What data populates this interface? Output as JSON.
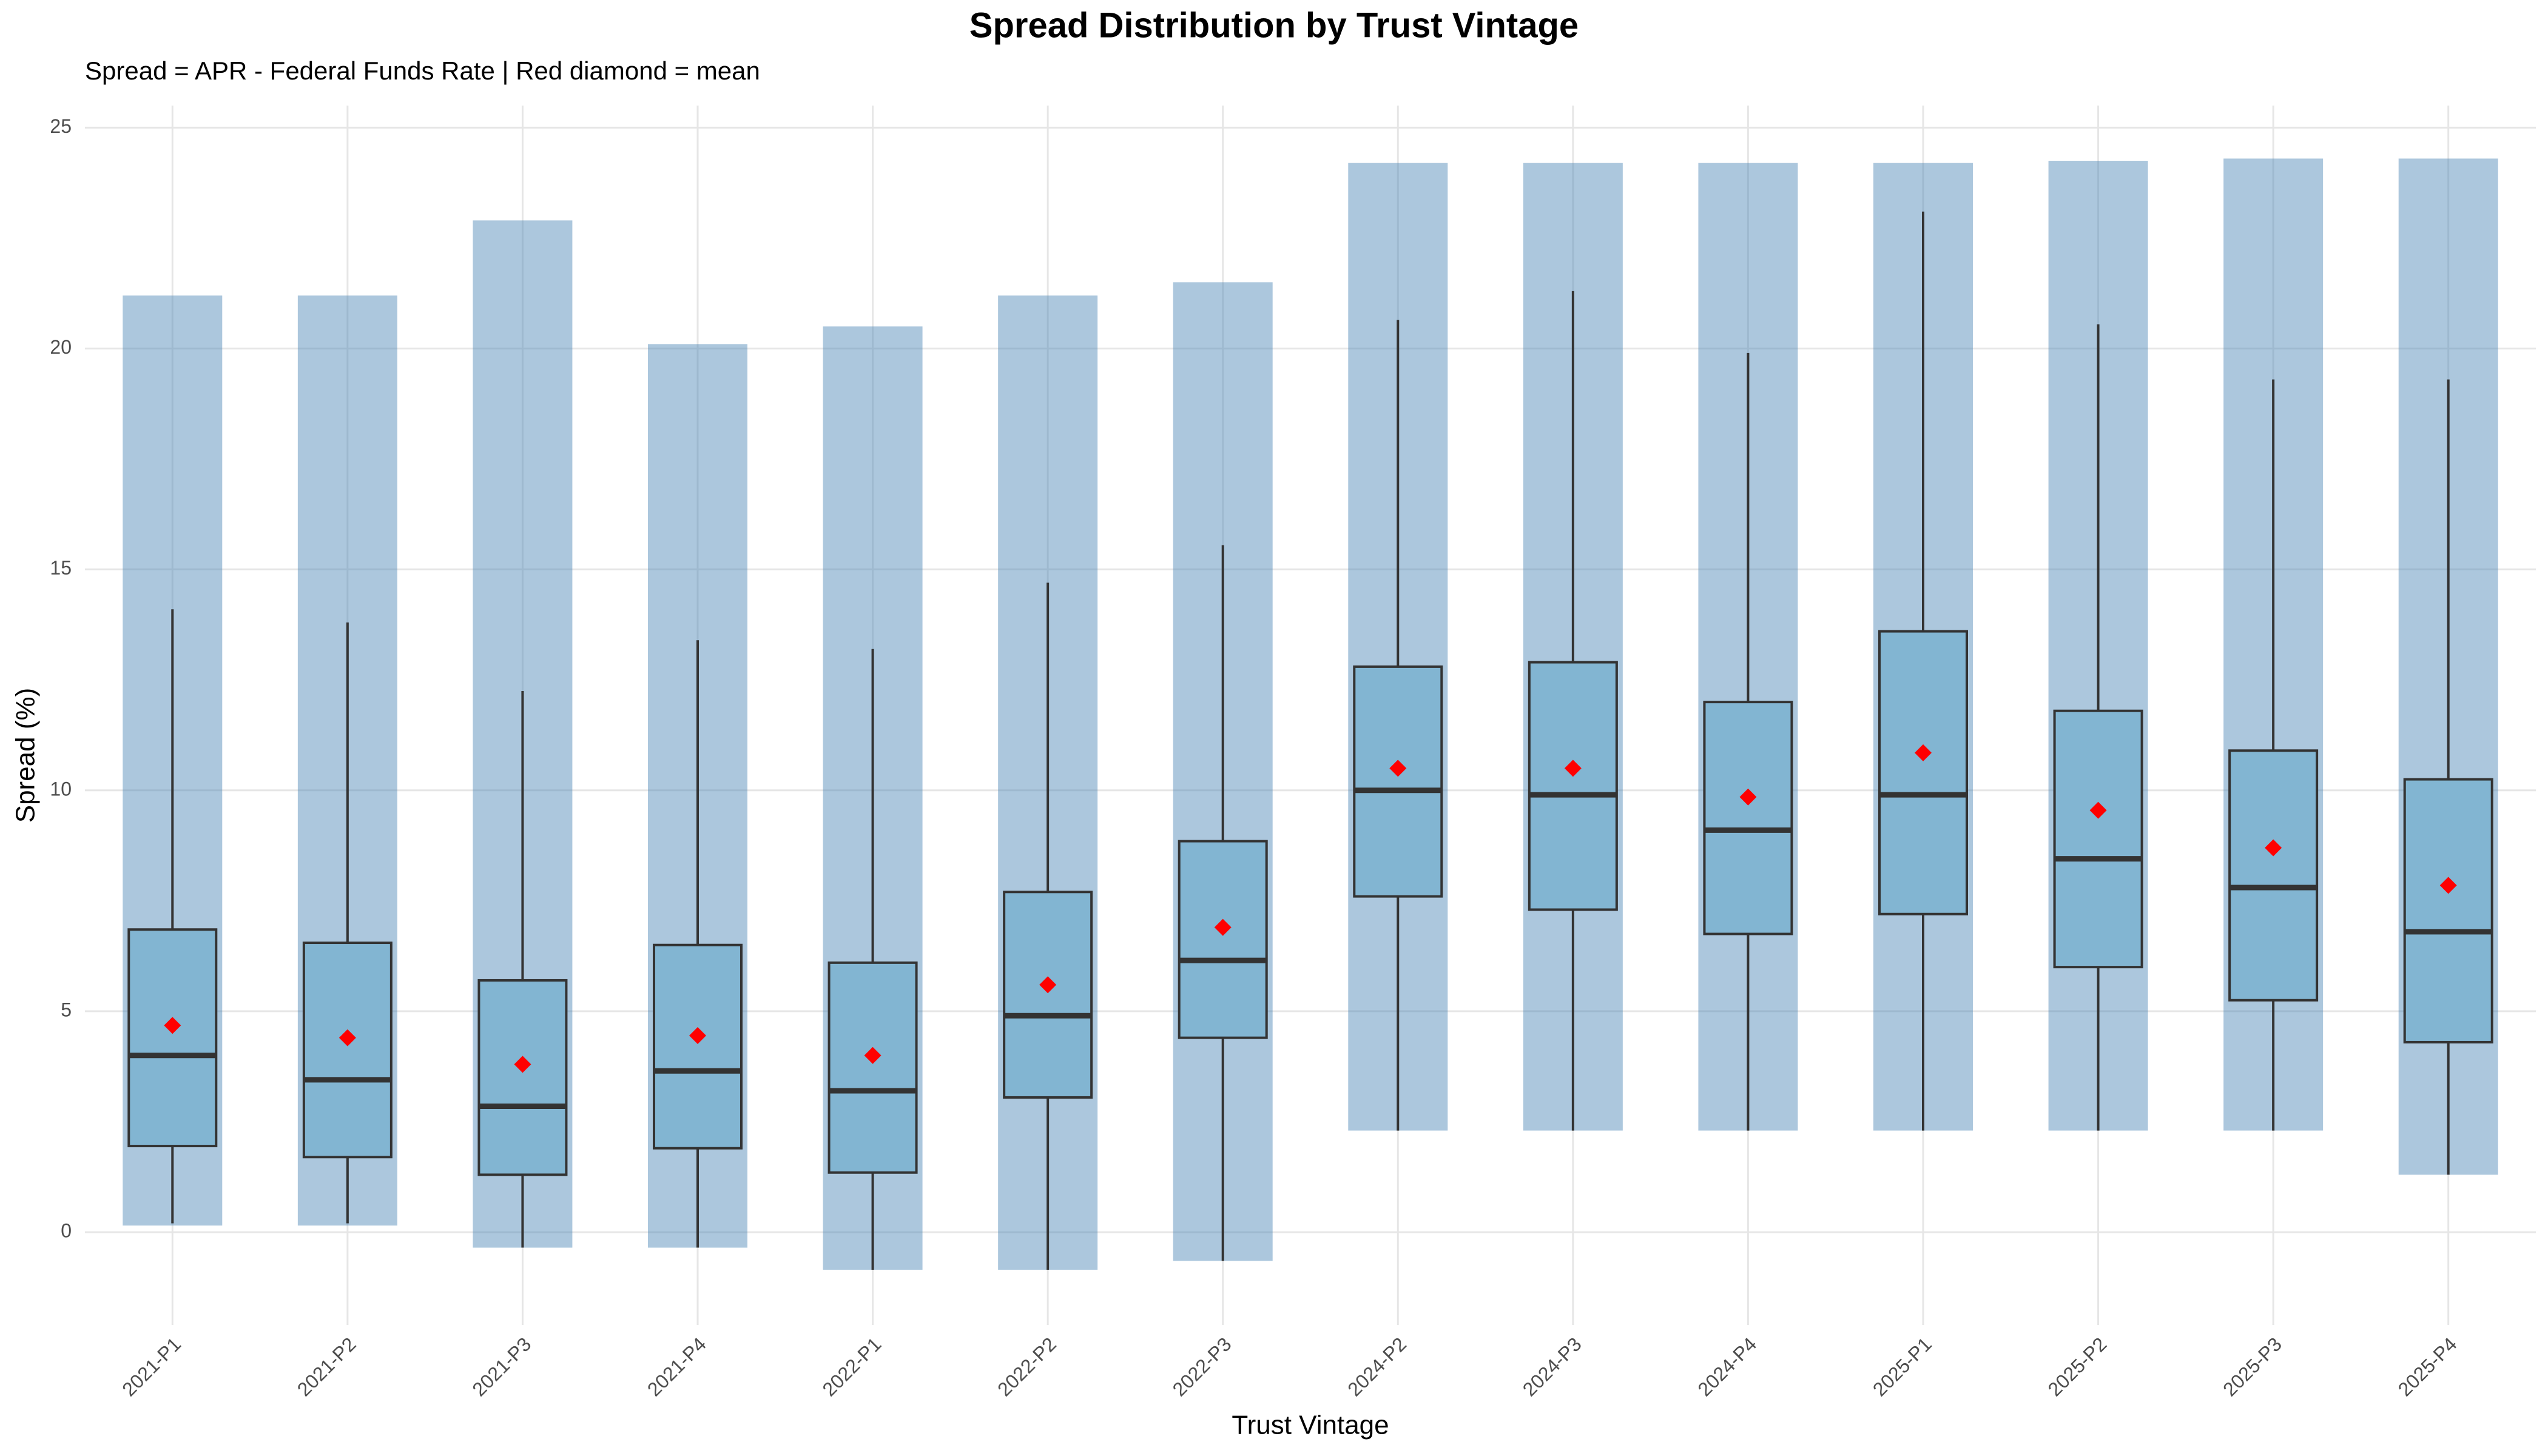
{
  "chart_data": {
    "type": "box",
    "title": "Spread Distribution by Trust Vintage",
    "subtitle": "Spread = APR - Federal Funds Rate | Red diamond = mean",
    "x_label": "Trust Vintage",
    "y_label": "Spread (%)",
    "categories": [
      "2021-P1",
      "2021-P2",
      "2021-P3",
      "2021-P4",
      "2022-P1",
      "2022-P2",
      "2022-P3",
      "2024-P2",
      "2024-P3",
      "2024-P4",
      "2025-P1",
      "2025-P2",
      "2025-P3",
      "2025-P4"
    ],
    "whisker_low": [
      0.2,
      0.2,
      -0.35,
      -0.35,
      -0.85,
      -0.85,
      -0.65,
      2.3,
      2.3,
      2.3,
      2.3,
      2.3,
      2.3,
      1.3
    ],
    "q1": [
      1.95,
      1.7,
      1.3,
      1.9,
      1.35,
      3.05,
      4.4,
      7.6,
      7.3,
      6.75,
      7.2,
      6.0,
      5.25,
      4.3
    ],
    "median": [
      4.0,
      3.45,
      2.85,
      3.65,
      3.2,
      4.9,
      6.15,
      10.0,
      9.9,
      9.1,
      9.9,
      8.45,
      7.8,
      6.8
    ],
    "q3": [
      6.85,
      6.55,
      5.7,
      6.5,
      6.1,
      7.7,
      8.85,
      12.8,
      12.9,
      12.0,
      13.6,
      11.8,
      10.9,
      10.25
    ],
    "whisker_high": [
      14.1,
      13.8,
      12.25,
      13.4,
      13.2,
      14.7,
      15.55,
      20.65,
      21.3,
      19.9,
      23.1,
      20.55,
      19.3,
      19.3
    ],
    "mean": [
      4.68,
      4.4,
      3.8,
      4.45,
      4.0,
      5.6,
      6.9,
      10.5,
      10.5,
      9.85,
      10.85,
      9.55,
      8.7,
      7.85
    ],
    "points_min": [
      0.15,
      0.15,
      -0.35,
      -0.35,
      -0.85,
      -0.85,
      -0.65,
      2.3,
      2.3,
      2.3,
      2.3,
      2.3,
      2.3,
      1.3
    ],
    "points_max": [
      21.2,
      21.2,
      22.9,
      20.1,
      20.5,
      21.2,
      21.5,
      24.2,
      24.2,
      24.2,
      24.2,
      24.25,
      24.3,
      24.3
    ],
    "box_color": "#82b5d2",
    "point_color": "#4682b4",
    "mean_color": "#ff0000",
    "ylim": [
      -2.1,
      25.5
    ],
    "yticks": [
      0,
      5,
      10,
      15,
      20,
      25
    ],
    "grid": true
  }
}
